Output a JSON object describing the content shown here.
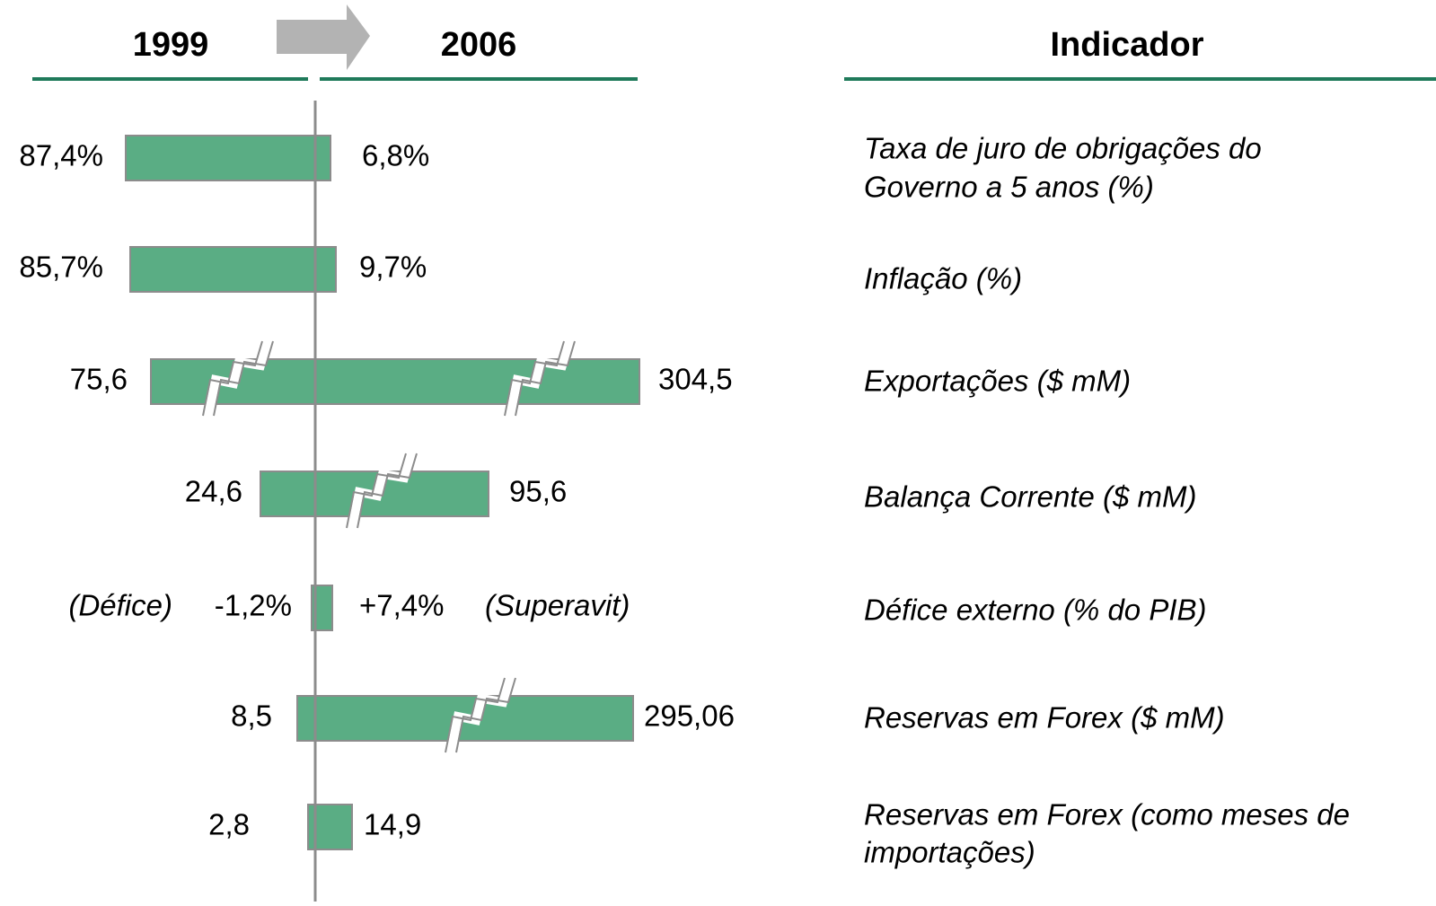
{
  "header": {
    "from": "1999",
    "to": "2006",
    "indicator": "Indicador"
  },
  "rows": [
    {
      "left": "87,4%",
      "right": "6,8%",
      "indicator": [
        "Taxa de juro de obrigações do",
        "Governo a 5 anos (%)"
      ]
    },
    {
      "left": "85,7%",
      "right": "9,7%",
      "indicator": [
        "Inflação (%)"
      ]
    },
    {
      "left": "75,6",
      "right": "304,5",
      "indicator": [
        "Exportações ($ mM)"
      ]
    },
    {
      "left": "24,6",
      "right": "95,6",
      "indicator": [
        "Balança Corrente ($ mM)"
      ]
    },
    {
      "left": "-1,2%",
      "right": "+7,4%",
      "left_note": "(Défice)",
      "right_note": "(Superavit)",
      "indicator": [
        "Défice externo (% do PIB)"
      ]
    },
    {
      "left": "8,5",
      "right": "295,06",
      "indicator": [
        "Reservas em Forex ($ mM)"
      ]
    },
    {
      "left": "2,8",
      "right": "14,9",
      "indicator": [
        "Reservas em Forex (como meses de",
        "importações)"
      ]
    }
  ]
}
